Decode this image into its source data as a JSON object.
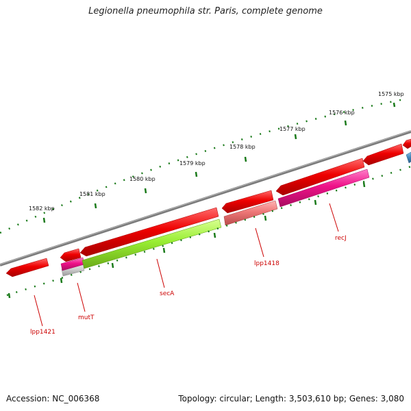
{
  "title": "Legionella pneumophila str. Paris, complete genome",
  "footer": {
    "accession": "Accession: NC_006368",
    "summary": "Topology: circular; Length: 3,503,610 bp; Genes: 3,080"
  },
  "ticks": [
    {
      "label": "1575 kbp",
      "kbp": 1575
    },
    {
      "label": "1576 kbp",
      "kbp": 1576
    },
    {
      "label": "1577 kbp",
      "kbp": 1577
    },
    {
      "label": "1578 kbp",
      "kbp": 1578
    },
    {
      "label": "1579 kbp",
      "kbp": 1579
    },
    {
      "label": "1580 kbp",
      "kbp": 1580
    },
    {
      "label": "1581 kbp",
      "kbp": 1581
    },
    {
      "label": "1582 kbp",
      "kbp": 1582
    }
  ],
  "genes": [
    {
      "label": "lpp1421",
      "color": "#ee0000",
      "track": "outer"
    },
    {
      "label": "mutT",
      "color": "#ee0000",
      "track": "outer"
    },
    {
      "label": "secA",
      "color": "#99ee33",
      "track": "inner"
    },
    {
      "label": "lpp1418",
      "color": "#ee7777",
      "track": "inner"
    },
    {
      "label": "recJ",
      "color": "#ee1188",
      "track": "inner"
    }
  ],
  "colors": {
    "backbone": "#7a7a7a",
    "tick": "#1a7a1a",
    "cds": "#ee0000",
    "label": "#cc0000",
    "blue_feature": "#4488bb"
  }
}
